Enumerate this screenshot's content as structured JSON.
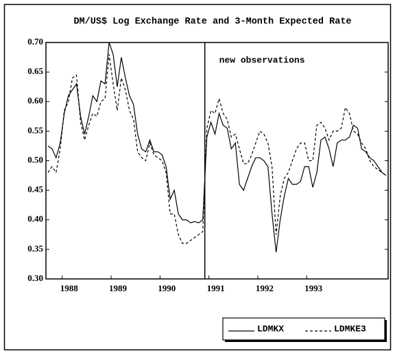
{
  "chart_data": {
    "type": "line",
    "title": "DM/US$ Log Exchange Rate and 3-Month Expected Rate",
    "annotation": {
      "text": "new observations",
      "category_index": 39
    },
    "categories": [
      null,
      null,
      null,
      null,
      "1988",
      null,
      null,
      null,
      null,
      null,
      null,
      null,
      null,
      null,
      null,
      null,
      "1989",
      null,
      null,
      null,
      null,
      null,
      null,
      null,
      null,
      null,
      null,
      null,
      "1990",
      null,
      null,
      null,
      null,
      null,
      null,
      null,
      null,
      null,
      null,
      null,
      "1991",
      null,
      null,
      null,
      null,
      null,
      null,
      null,
      null,
      null,
      null,
      null,
      "1992",
      null,
      null,
      null,
      null,
      null,
      null,
      null,
      null,
      null,
      null,
      null,
      "1993",
      null,
      null,
      null,
      null,
      null,
      null,
      null,
      null,
      null,
      null,
      null,
      null,
      null,
      null,
      null,
      null,
      null,
      null,
      null
    ],
    "series": [
      {
        "name": "LDMKX",
        "color": "#000000",
        "dash": "solid",
        "values": [
          0.525,
          0.52,
          0.505,
          0.53,
          0.58,
          0.61,
          0.62,
          0.63,
          0.575,
          0.545,
          0.575,
          0.61,
          0.6,
          0.635,
          0.63,
          0.7,
          0.68,
          0.625,
          0.675,
          0.64,
          0.61,
          0.595,
          0.545,
          0.52,
          0.515,
          0.535,
          0.515,
          0.515,
          0.51,
          0.49,
          0.435,
          0.45,
          0.41,
          0.4,
          0.4,
          0.395,
          0.397,
          0.395,
          0.4,
          0.54,
          0.565,
          0.545,
          0.58,
          0.56,
          0.555,
          0.52,
          0.53,
          0.46,
          0.45,
          0.47,
          0.49,
          0.505,
          0.505,
          0.5,
          0.49,
          0.41,
          0.345,
          0.4,
          0.44,
          0.47,
          0.46,
          0.46,
          0.465,
          0.49,
          0.49,
          0.455,
          0.48,
          0.535,
          0.54,
          0.52,
          0.49,
          0.53,
          0.535,
          0.535,
          0.54,
          0.56,
          0.555,
          0.52,
          0.515,
          0.505,
          0.5,
          0.49,
          0.48,
          0.475
        ]
      },
      {
        "name": "LDMKE3",
        "color": "#000000",
        "dash": "dashed",
        "values": [
          0.48,
          0.49,
          0.48,
          0.52,
          0.585,
          0.6,
          0.64,
          0.645,
          0.565,
          0.535,
          0.56,
          0.58,
          0.575,
          0.6,
          0.605,
          0.68,
          0.63,
          0.585,
          0.64,
          0.62,
          0.585,
          0.57,
          0.515,
          0.505,
          0.5,
          0.53,
          0.51,
          0.505,
          0.5,
          0.48,
          0.41,
          0.41,
          0.375,
          0.36,
          0.36,
          0.365,
          0.37,
          0.375,
          0.38,
          0.555,
          0.585,
          0.58,
          0.605,
          0.58,
          0.57,
          0.54,
          0.545,
          0.52,
          0.495,
          0.495,
          0.51,
          0.53,
          0.55,
          0.545,
          0.53,
          0.49,
          0.375,
          0.44,
          0.47,
          0.48,
          0.5,
          0.52,
          0.53,
          0.53,
          0.5,
          0.5,
          0.56,
          0.565,
          0.555,
          0.535,
          0.55,
          0.55,
          0.555,
          0.59,
          0.58,
          0.55,
          0.545,
          0.53,
          0.52,
          0.5,
          0.49,
          0.485,
          0.48,
          0.475
        ]
      }
    ],
    "ylim": [
      0.3,
      0.7
    ],
    "yticks": [
      {
        "value": 0.3,
        "label": "0.30"
      },
      {
        "value": 0.35,
        "label": "0.35"
      },
      {
        "value": 0.4,
        "label": "0.40"
      },
      {
        "value": 0.45,
        "label": "0.45"
      },
      {
        "value": 0.5,
        "label": "0.50"
      },
      {
        "value": 0.55,
        "label": "0.55"
      },
      {
        "value": 0.6,
        "label": "0.60"
      },
      {
        "value": 0.65,
        "label": "0.65"
      },
      {
        "value": 0.7,
        "label": "0.70"
      }
    ],
    "grid": false,
    "legend": "bottom-right"
  }
}
